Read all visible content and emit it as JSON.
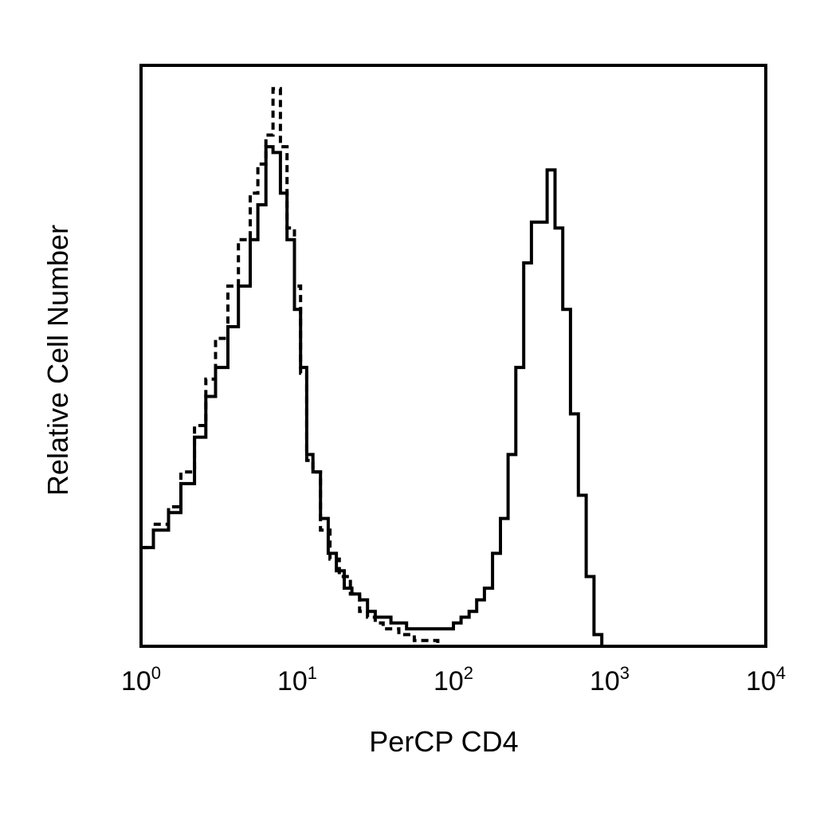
{
  "chart_data": {
    "type": "line",
    "xlabel": "PerCP CD4",
    "ylabel": "Relative Cell Number",
    "x_scale": "log",
    "xlim": [
      1,
      10000
    ],
    "ylim": [
      0,
      100
    ],
    "x_ticks": [
      {
        "base": "10",
        "exp": "0",
        "value": 1
      },
      {
        "base": "10",
        "exp": "1",
        "value": 10
      },
      {
        "base": "10",
        "exp": "2",
        "value": 100
      },
      {
        "base": "10",
        "exp": "3",
        "value": 1000
      },
      {
        "base": "10",
        "exp": "4",
        "value": 10000
      }
    ],
    "grid": false,
    "legend": "none",
    "series": [
      {
        "style": "dashed",
        "color": "#000000",
        "x": [
          1.0,
          1.2,
          1.5,
          1.8,
          2.2,
          2.6,
          3.0,
          3.6,
          4.2,
          5.0,
          5.6,
          6.3,
          7.0,
          7.8,
          8.6,
          9.6,
          10.5,
          11.5,
          12.6,
          14.1,
          16.2,
          18.6,
          21.9,
          25.1,
          28.2,
          31.6,
          35.5,
          39.8,
          44.7,
          50.1,
          56.2,
          63.1,
          70.8,
          79.4,
          89.1
        ],
        "y": [
          17,
          21,
          24,
          30,
          38,
          46,
          53,
          62,
          70,
          78,
          83,
          88,
          96,
          86,
          72,
          62,
          47,
          32,
          30,
          20,
          15,
          12,
          9,
          6,
          5,
          4,
          3,
          3,
          2,
          2,
          1,
          1,
          1,
          0,
          0
        ]
      },
      {
        "style": "solid",
        "color": "#000000",
        "x": [
          1.0,
          1.2,
          1.5,
          1.8,
          2.2,
          2.6,
          3.0,
          3.6,
          4.2,
          5.0,
          5.6,
          6.3,
          7.0,
          7.8,
          8.6,
          9.6,
          10.5,
          11.5,
          12.6,
          14.1,
          15.8,
          17.8,
          20.0,
          22.4,
          25.1,
          28.2,
          31.6,
          39.8,
          50.1,
          63.1,
          79.4,
          100,
          112,
          126,
          141,
          158,
          178,
          200,
          224,
          251,
          282,
          316,
          355,
          398,
          447,
          501,
          562,
          631,
          708,
          794,
          891
        ],
        "y": [
          17,
          20,
          23,
          28,
          36,
          43,
          48,
          55,
          62,
          70,
          76,
          86,
          85,
          78,
          70,
          58,
          48,
          33,
          30,
          22,
          16,
          13,
          10,
          9,
          8,
          6,
          5,
          4,
          3,
          3,
          3,
          4,
          5,
          6,
          8,
          10,
          16,
          22,
          33,
          48,
          66,
          73,
          73,
          82,
          72,
          58,
          40,
          26,
          12,
          2,
          0
        ]
      }
    ]
  }
}
